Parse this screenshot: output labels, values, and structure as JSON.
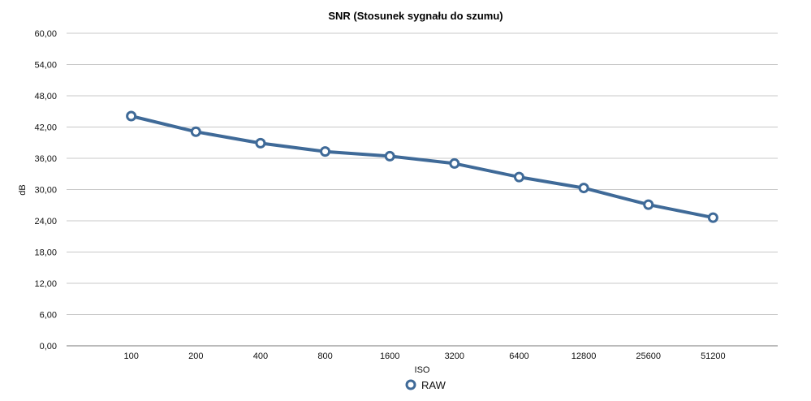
{
  "chart_data": {
    "type": "line",
    "title": "SNR (Stosunek sygnału do szumu)",
    "xlabel": "ISO",
    "ylabel": "dB",
    "categories": [
      "100",
      "200",
      "400",
      "800",
      "1600",
      "3200",
      "6400",
      "12800",
      "25600",
      "51200"
    ],
    "ylim": [
      0,
      60
    ],
    "yticks": [
      "0,00",
      "6,00",
      "12,00",
      "18,00",
      "24,00",
      "30,00",
      "36,00",
      "42,00",
      "48,00",
      "54,00",
      "60,00"
    ],
    "grid": true,
    "legend_position": "bottom",
    "series": [
      {
        "name": "RAW",
        "color": "#3f6a98",
        "values": [
          44.1,
          41.1,
          38.9,
          37.3,
          36.4,
          35.0,
          32.4,
          30.3,
          27.1,
          24.6
        ]
      }
    ]
  }
}
